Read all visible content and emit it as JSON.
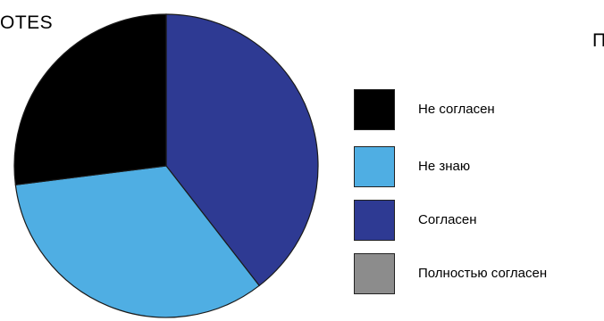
{
  "chart_data": {
    "type": "pie",
    "title": "",
    "labels_cut": {
      "left_text": "OTES",
      "right_text": "П"
    },
    "slices": [
      {
        "label": "Согласен",
        "value": 39.5,
        "color": "#2E3A93"
      },
      {
        "label": "Не знаю",
        "value": 33.5,
        "color": "#4FAEE3"
      },
      {
        "label": "Не согласен",
        "value": 27.0,
        "color": "#000000"
      },
      {
        "label": "Полностью согласен",
        "value": 0,
        "color": "#8C8C8C"
      }
    ],
    "legend": {
      "placement": "right",
      "items": [
        {
          "label": "Не согласен",
          "color": "#000000"
        },
        {
          "label": "Не знаю",
          "color": "#4FAEE3"
        },
        {
          "label": "Согласен",
          "color": "#2E3A93"
        },
        {
          "label": "Полностью согласен",
          "color": "#8C8C8C"
        }
      ]
    }
  }
}
